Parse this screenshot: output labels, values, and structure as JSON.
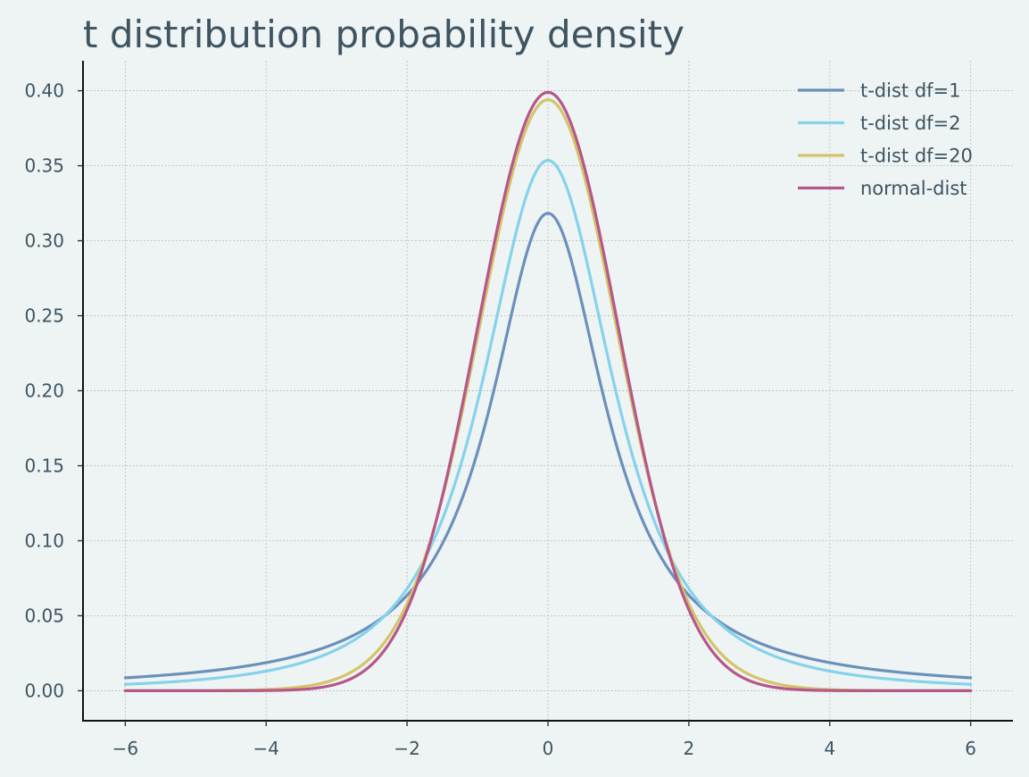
{
  "chart_data": {
    "type": "line",
    "title": "t distribution probability density",
    "xlabel": "",
    "ylabel": "",
    "xlim": [
      -6.6,
      6.6
    ],
    "ylim": [
      -0.02,
      0.42
    ],
    "x_range": [
      -6,
      6
    ],
    "x_ticks": [
      -6,
      -4,
      -2,
      0,
      2,
      4,
      6
    ],
    "x_tick_labels": [
      "−6",
      "−4",
      "−2",
      "0",
      "2",
      "4",
      "6"
    ],
    "y_ticks": [
      0.0,
      0.05,
      0.1,
      0.15,
      0.2,
      0.25,
      0.3,
      0.35,
      0.4
    ],
    "y_tick_labels": [
      "0.00",
      "0.05",
      "0.10",
      "0.15",
      "0.20",
      "0.25",
      "0.30",
      "0.35",
      "0.40"
    ],
    "grid": true,
    "legend_position": "top-right",
    "series": [
      {
        "name": "t-dist df=1",
        "color": "#6a90bb",
        "x": [
          -6,
          -5,
          -4,
          -3,
          -2.5,
          -2,
          -1.5,
          -1,
          -0.5,
          0,
          0.5,
          1,
          1.5,
          2,
          2.5,
          3,
          4,
          5,
          6
        ],
        "y": [
          0.0086,
          0.0122,
          0.0187,
          0.0318,
          0.0439,
          0.0637,
          0.0979,
          0.1592,
          0.2546,
          0.3183,
          0.2546,
          0.1592,
          0.0979,
          0.0637,
          0.0439,
          0.0318,
          0.0187,
          0.0122,
          0.0086
        ]
      },
      {
        "name": "t-dist df=2",
        "color": "#86d2ea",
        "x": [
          -6,
          -5,
          -4,
          -3,
          -2.5,
          -2,
          -1.5,
          -1,
          -0.5,
          0,
          0.5,
          1,
          1.5,
          2,
          2.5,
          3,
          4,
          5,
          6
        ],
        "y": [
          0.0044,
          0.0071,
          0.0131,
          0.0274,
          0.0422,
          0.068,
          0.1134,
          0.1925,
          0.2962,
          0.3536,
          0.2962,
          0.1925,
          0.1134,
          0.068,
          0.0422,
          0.0274,
          0.0131,
          0.0071,
          0.0044
        ]
      },
      {
        "name": "t-dist df=20",
        "color": "#d4c36a",
        "x": [
          -6,
          -5,
          -4,
          -3,
          -2.5,
          -2,
          -1.5,
          -1,
          -0.5,
          0,
          0.5,
          1,
          1.5,
          2,
          2.5,
          3,
          4,
          5,
          6
        ],
        "y": [
          5e-06,
          5e-05,
          0.0006,
          0.0066,
          0.0194,
          0.0581,
          0.1288,
          0.236,
          0.3465,
          0.394,
          0.3465,
          0.236,
          0.1288,
          0.0581,
          0.0194,
          0.0066,
          0.0006,
          5e-05,
          5e-06
        ]
      },
      {
        "name": "normal-dist",
        "color": "#b5578a",
        "x": [
          -6,
          -5,
          -4,
          -3,
          -2.5,
          -2,
          -1.5,
          -1,
          -0.5,
          0,
          0.5,
          1,
          1.5,
          2,
          2.5,
          3,
          4,
          5,
          6
        ],
        "y": [
          0.0,
          1.5e-06,
          0.0001,
          0.0044,
          0.0175,
          0.054,
          0.1295,
          0.242,
          0.3521,
          0.3989,
          0.3521,
          0.242,
          0.1295,
          0.054,
          0.0175,
          0.0044,
          0.0001,
          1.5e-06,
          0.0
        ]
      }
    ]
  }
}
